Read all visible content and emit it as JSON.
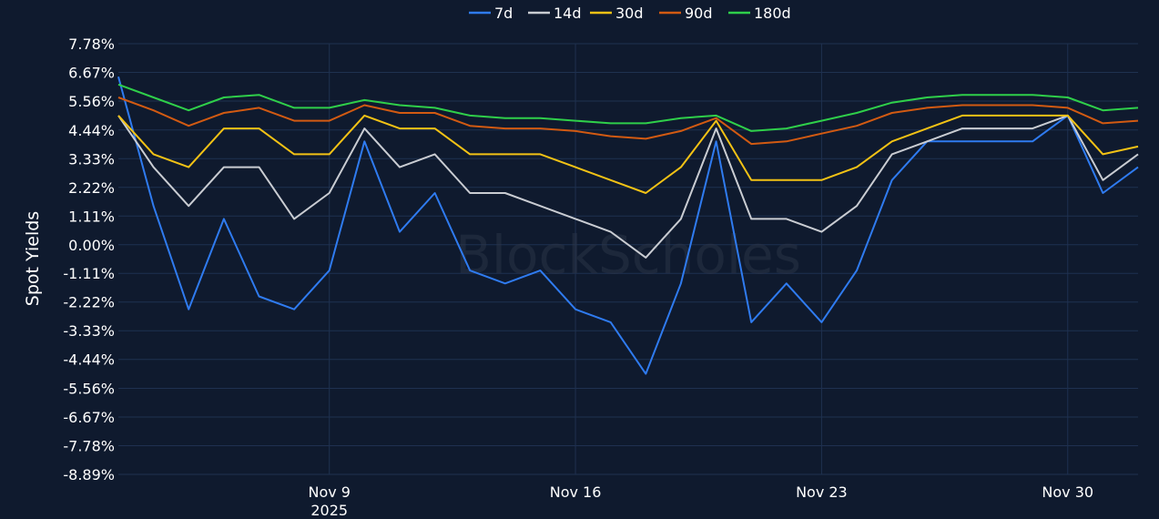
{
  "watermark": "BlockScholes",
  "colors": {
    "background": "#0f1a2e",
    "grid": "#1f3150",
    "series": [
      "#2f7bf0",
      "#c9ccd2",
      "#f2c215",
      "#d25a12",
      "#2fcf4a"
    ]
  },
  "chart_data": {
    "type": "line",
    "ylabel": "Spot Yields",
    "ylim": [
      -8.89,
      7.78
    ],
    "x_range": [
      "2025-11-03",
      "2025-12-02"
    ],
    "yticks": [
      "7.78%",
      "6.67%",
      "5.56%",
      "4.44%",
      "3.33%",
      "2.22%",
      "1.11%",
      "0.00%",
      "-1.11%",
      "-2.22%",
      "-3.33%",
      "-4.44%",
      "-5.56%",
      "-6.67%",
      "-7.78%",
      "-8.89%"
    ],
    "ytick_values": [
      7.78,
      6.67,
      5.56,
      4.44,
      3.33,
      2.22,
      1.11,
      0.0,
      -1.11,
      -2.22,
      -3.33,
      -4.44,
      -5.56,
      -6.67,
      -7.78,
      -8.89
    ],
    "xticks": [
      {
        "date": "2025-11-09",
        "label": "Nov 9",
        "sublabel": "2025"
      },
      {
        "date": "2025-11-16",
        "label": "Nov 16",
        "sublabel": ""
      },
      {
        "date": "2025-11-23",
        "label": "Nov 23",
        "sublabel": ""
      },
      {
        "date": "2025-11-30",
        "label": "Nov 30",
        "sublabel": ""
      }
    ],
    "legend_position": "top-center",
    "series": [
      {
        "name": "7d",
        "dates": [
          "2025-11-03",
          "2025-11-04",
          "2025-11-05",
          "2025-11-06",
          "2025-11-07",
          "2025-11-08",
          "2025-11-09",
          "2025-11-10",
          "2025-11-11",
          "2025-11-12",
          "2025-11-13",
          "2025-11-14",
          "2025-11-15",
          "2025-11-16",
          "2025-11-17",
          "2025-11-18",
          "2025-11-19",
          "2025-11-20",
          "2025-11-21",
          "2025-11-22",
          "2025-11-23",
          "2025-11-24",
          "2025-11-25",
          "2025-11-26",
          "2025-11-27",
          "2025-11-28",
          "2025-11-29",
          "2025-11-30",
          "2025-12-01",
          "2025-12-02"
        ],
        "values": [
          6.5,
          1.5,
          -2.5,
          1.0,
          -2.0,
          -2.5,
          -1.0,
          4.0,
          0.5,
          2.0,
          -1.0,
          -1.5,
          -1.0,
          -2.5,
          -3.0,
          -5.0,
          -1.5,
          4.0,
          -3.0,
          -1.5,
          -3.0,
          -1.0,
          2.5,
          4.0,
          4.0,
          4.0,
          4.0,
          5.0,
          2.0,
          3.0
        ]
      },
      {
        "name": "14d",
        "dates": [
          "2025-11-03",
          "2025-11-04",
          "2025-11-05",
          "2025-11-06",
          "2025-11-07",
          "2025-11-08",
          "2025-11-09",
          "2025-11-10",
          "2025-11-11",
          "2025-11-12",
          "2025-11-13",
          "2025-11-14",
          "2025-11-15",
          "2025-11-16",
          "2025-11-17",
          "2025-11-18",
          "2025-11-19",
          "2025-11-20",
          "2025-11-21",
          "2025-11-22",
          "2025-11-23",
          "2025-11-24",
          "2025-11-25",
          "2025-11-26",
          "2025-11-27",
          "2025-11-28",
          "2025-11-29",
          "2025-11-30",
          "2025-12-01",
          "2025-12-02"
        ],
        "values": [
          5.0,
          3.0,
          1.5,
          3.0,
          3.0,
          1.0,
          2.0,
          4.5,
          3.0,
          3.5,
          2.0,
          2.0,
          1.5,
          1.0,
          0.5,
          -0.5,
          1.0,
          4.5,
          1.0,
          1.0,
          0.5,
          1.5,
          3.5,
          4.0,
          4.5,
          4.5,
          4.5,
          5.0,
          2.5,
          3.5
        ]
      },
      {
        "name": "30d",
        "dates": [
          "2025-11-03",
          "2025-11-04",
          "2025-11-05",
          "2025-11-06",
          "2025-11-07",
          "2025-11-08",
          "2025-11-09",
          "2025-11-10",
          "2025-11-11",
          "2025-11-12",
          "2025-11-13",
          "2025-11-14",
          "2025-11-15",
          "2025-11-16",
          "2025-11-17",
          "2025-11-18",
          "2025-11-19",
          "2025-11-20",
          "2025-11-21",
          "2025-11-22",
          "2025-11-23",
          "2025-11-24",
          "2025-11-25",
          "2025-11-26",
          "2025-11-27",
          "2025-11-28",
          "2025-11-29",
          "2025-11-30",
          "2025-12-01",
          "2025-12-02"
        ],
        "values": [
          5.0,
          3.5,
          3.0,
          4.5,
          4.5,
          3.5,
          3.5,
          5.0,
          4.5,
          4.5,
          3.5,
          3.5,
          3.5,
          3.0,
          2.5,
          2.0,
          3.0,
          4.8,
          2.5,
          2.5,
          2.5,
          3.0,
          4.0,
          4.5,
          5.0,
          5.0,
          5.0,
          5.0,
          3.5,
          3.8
        ]
      },
      {
        "name": "90d",
        "dates": [
          "2025-11-03",
          "2025-11-04",
          "2025-11-05",
          "2025-11-06",
          "2025-11-07",
          "2025-11-08",
          "2025-11-09",
          "2025-11-10",
          "2025-11-11",
          "2025-11-12",
          "2025-11-13",
          "2025-11-14",
          "2025-11-15",
          "2025-11-16",
          "2025-11-17",
          "2025-11-18",
          "2025-11-19",
          "2025-11-20",
          "2025-11-21",
          "2025-11-22",
          "2025-11-23",
          "2025-11-24",
          "2025-11-25",
          "2025-11-26",
          "2025-11-27",
          "2025-11-28",
          "2025-11-29",
          "2025-11-30",
          "2025-12-01",
          "2025-12-02"
        ],
        "values": [
          5.7,
          5.2,
          4.6,
          5.1,
          5.3,
          4.8,
          4.8,
          5.4,
          5.1,
          5.1,
          4.6,
          4.5,
          4.5,
          4.4,
          4.2,
          4.1,
          4.4,
          4.9,
          3.9,
          4.0,
          4.3,
          4.6,
          5.1,
          5.3,
          5.4,
          5.4,
          5.4,
          5.3,
          4.7,
          4.8
        ]
      },
      {
        "name": "180d",
        "dates": [
          "2025-11-03",
          "2025-11-04",
          "2025-11-05",
          "2025-11-06",
          "2025-11-07",
          "2025-11-08",
          "2025-11-09",
          "2025-11-10",
          "2025-11-11",
          "2025-11-12",
          "2025-11-13",
          "2025-11-14",
          "2025-11-15",
          "2025-11-16",
          "2025-11-17",
          "2025-11-18",
          "2025-11-19",
          "2025-11-20",
          "2025-11-21",
          "2025-11-22",
          "2025-11-23",
          "2025-11-24",
          "2025-11-25",
          "2025-11-26",
          "2025-11-27",
          "2025-11-28",
          "2025-11-29",
          "2025-11-30",
          "2025-12-01",
          "2025-12-02"
        ],
        "values": [
          6.2,
          5.7,
          5.2,
          5.7,
          5.8,
          5.3,
          5.3,
          5.6,
          5.4,
          5.3,
          5.0,
          4.9,
          4.9,
          4.8,
          4.7,
          4.7,
          4.9,
          5.0,
          4.4,
          4.5,
          4.8,
          5.1,
          5.5,
          5.7,
          5.8,
          5.8,
          5.8,
          5.7,
          5.2,
          5.3
        ]
      }
    ]
  }
}
